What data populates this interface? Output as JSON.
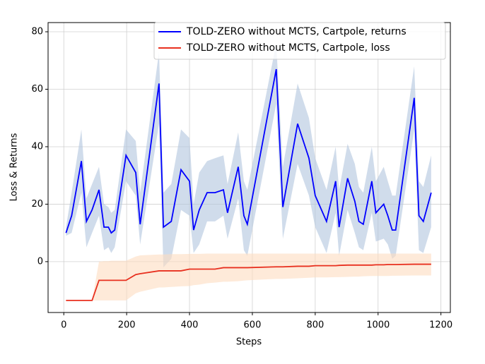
{
  "chart_data": {
    "type": "line",
    "xlabel": "Steps",
    "ylabel": "Loss & Returns",
    "x": [
      7,
      25,
      56,
      72,
      90,
      112,
      128,
      142,
      151,
      162,
      198,
      229,
      243,
      303,
      317,
      342,
      373,
      400,
      413,
      431,
      456,
      481,
      508,
      521,
      555,
      573,
      584,
      676,
      697,
      744,
      780,
      800,
      836,
      865,
      876,
      903,
      926,
      939,
      953,
      980,
      993,
      1018,
      1031,
      1045,
      1056,
      1115,
      1130,
      1144,
      1169
    ],
    "series": [
      {
        "name": "TOLD-ZERO without MCTS, Cartpole, returns",
        "color": "#0000ff",
        "band_color": "#b0c4de",
        "values": [
          10,
          16,
          35,
          14,
          18,
          25,
          12,
          12,
          10,
          11,
          37,
          31,
          13,
          62,
          12,
          14,
          32,
          28,
          11,
          18,
          24,
          24,
          25,
          17,
          33,
          16,
          13,
          67,
          19,
          48,
          36,
          23,
          14,
          28,
          12,
          29,
          21,
          14,
          13,
          28,
          17,
          20,
          16,
          11,
          11,
          57,
          16,
          14,
          24
        ],
        "upper": [
          12,
          24,
          46,
          22,
          27,
          33,
          20,
          19,
          17,
          18,
          46,
          42,
          24,
          73,
          24,
          27,
          46,
          43,
          20,
          31,
          35,
          36,
          37,
          27,
          45,
          28,
          25,
          76,
          33,
          62,
          50,
          36,
          25,
          40,
          25,
          41,
          34,
          26,
          24,
          40,
          28,
          33,
          28,
          23,
          23,
          68,
          28,
          26,
          37
        ],
        "lower": [
          9,
          10,
          24,
          5,
          10,
          16,
          4,
          5,
          3,
          5,
          28,
          23,
          6,
          48,
          -2,
          1,
          18,
          16,
          3,
          6,
          14,
          14,
          16,
          8,
          22,
          4,
          2,
          55,
          8,
          34,
          23,
          12,
          3,
          17,
          2,
          18,
          10,
          5,
          4,
          17,
          7,
          8,
          6,
          1,
          2,
          46,
          4,
          3,
          12
        ]
      },
      {
        "name": "TOLD-ZERO without MCTS, Cartpole, loss",
        "color": "#e8301f",
        "band_color": "#fddcbf",
        "values": [
          -13.5,
          -13.5,
          -13.5,
          -13.5,
          -13.5,
          -6.5,
          -6.5,
          -6.5,
          -6.5,
          -6.5,
          -6.5,
          -4.5,
          -4.2,
          -3.2,
          -3.2,
          -3.2,
          -3.2,
          -2.6,
          -2.6,
          -2.6,
          -2.6,
          -2.6,
          -2.1,
          -2.1,
          -2.1,
          -2.1,
          -2.1,
          -1.8,
          -1.8,
          -1.6,
          -1.6,
          -1.4,
          -1.4,
          -1.4,
          -1.3,
          -1.2,
          -1.2,
          -1.2,
          -1.2,
          -1.2,
          -1.1,
          -1.1,
          -1.0,
          -1.0,
          -1.0,
          -0.9,
          -0.9,
          -0.9,
          -0.9
        ],
        "upper": [
          -13.5,
          -13.5,
          -13.5,
          -13.5,
          -13.5,
          0,
          0.2,
          0.2,
          0.3,
          0.3,
          0.3,
          1.8,
          2.2,
          2.5,
          2.5,
          2.6,
          2.6,
          2.7,
          2.7,
          2.7,
          2.8,
          2.8,
          2.8,
          2.8,
          2.8,
          2.8,
          2.8,
          2.8,
          2.8,
          2.8,
          2.8,
          2.8,
          2.8,
          2.8,
          2.8,
          2.8,
          2.8,
          2.8,
          2.8,
          2.8,
          2.8,
          2.8,
          2.8,
          2.8,
          2.8,
          2.8,
          2.8,
          2.8,
          2.8
        ],
        "lower": [
          -13.5,
          -13.5,
          -13.5,
          -13.5,
          -13.5,
          -13.5,
          -13.5,
          -13.5,
          -13.5,
          -13.5,
          -13.5,
          -11,
          -10.5,
          -9,
          -9,
          -8.8,
          -8.6,
          -8.5,
          -8.2,
          -8,
          -7.5,
          -7.3,
          -7,
          -7,
          -6.8,
          -6.6,
          -6.5,
          -6,
          -6,
          -5.8,
          -5.6,
          -5.5,
          -5.5,
          -5.4,
          -5.4,
          -5.3,
          -5.2,
          -5.2,
          -5.1,
          -5,
          -5,
          -5,
          -5,
          -4.9,
          -4.9,
          -4.8,
          -4.8,
          -4.8,
          -4.8
        ]
      }
    ],
    "xlim": [
      -50,
      1230
    ],
    "ylim": [
      -17.7,
      83.2
    ],
    "xticks": [
      0,
      200,
      400,
      600,
      800,
      1000,
      1200
    ],
    "yticks": [
      0,
      20,
      40,
      60,
      80
    ],
    "grid": true,
    "legend": "upper right"
  }
}
